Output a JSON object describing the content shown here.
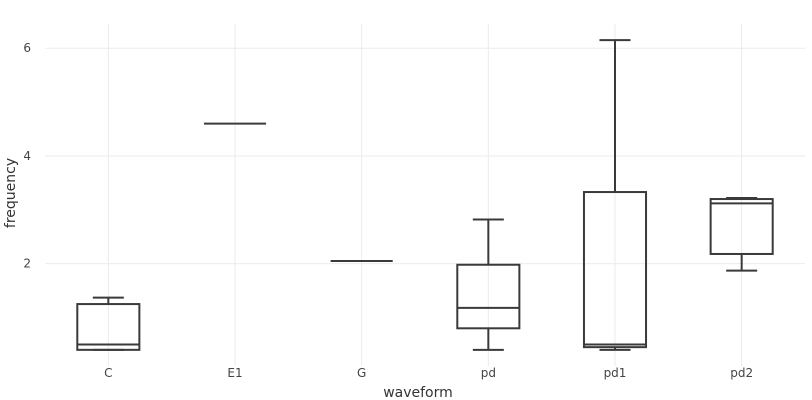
{
  "chart_data": {
    "type": "box",
    "xlabel": "waveform",
    "ylabel": "frequency",
    "ylim": [
      0.1,
      6.45
    ],
    "yticks": [
      2,
      4,
      6
    ],
    "grid": true,
    "legend": "none",
    "colors": {
      "box": "#3a3a3a",
      "grid": "#ebebeb",
      "tick": "#444444"
    },
    "categories": [
      "C",
      "E1",
      "G",
      "pd",
      "pd1",
      "pd2"
    ],
    "boxes": [
      {
        "category": "C",
        "min": 0.4,
        "q1": 0.4,
        "median": 0.5,
        "q3": 1.25,
        "max": 1.37
      },
      {
        "category": "E1",
        "min": 4.6,
        "q1": 4.6,
        "median": 4.6,
        "q3": 4.6,
        "max": 4.6
      },
      {
        "category": "G",
        "min": 2.05,
        "q1": 2.05,
        "median": 2.05,
        "q3": 2.05,
        "max": 2.05
      },
      {
        "category": "pd",
        "min": 0.4,
        "q1": 0.8,
        "median": 1.18,
        "q3": 1.98,
        "max": 2.82
      },
      {
        "category": "pd1",
        "min": 0.4,
        "q1": 0.45,
        "median": 0.5,
        "q3": 3.33,
        "max": 6.15
      },
      {
        "category": "pd2",
        "min": 1.87,
        "q1": 2.18,
        "median": 3.12,
        "q3": 3.2,
        "max": 3.22
      }
    ]
  }
}
